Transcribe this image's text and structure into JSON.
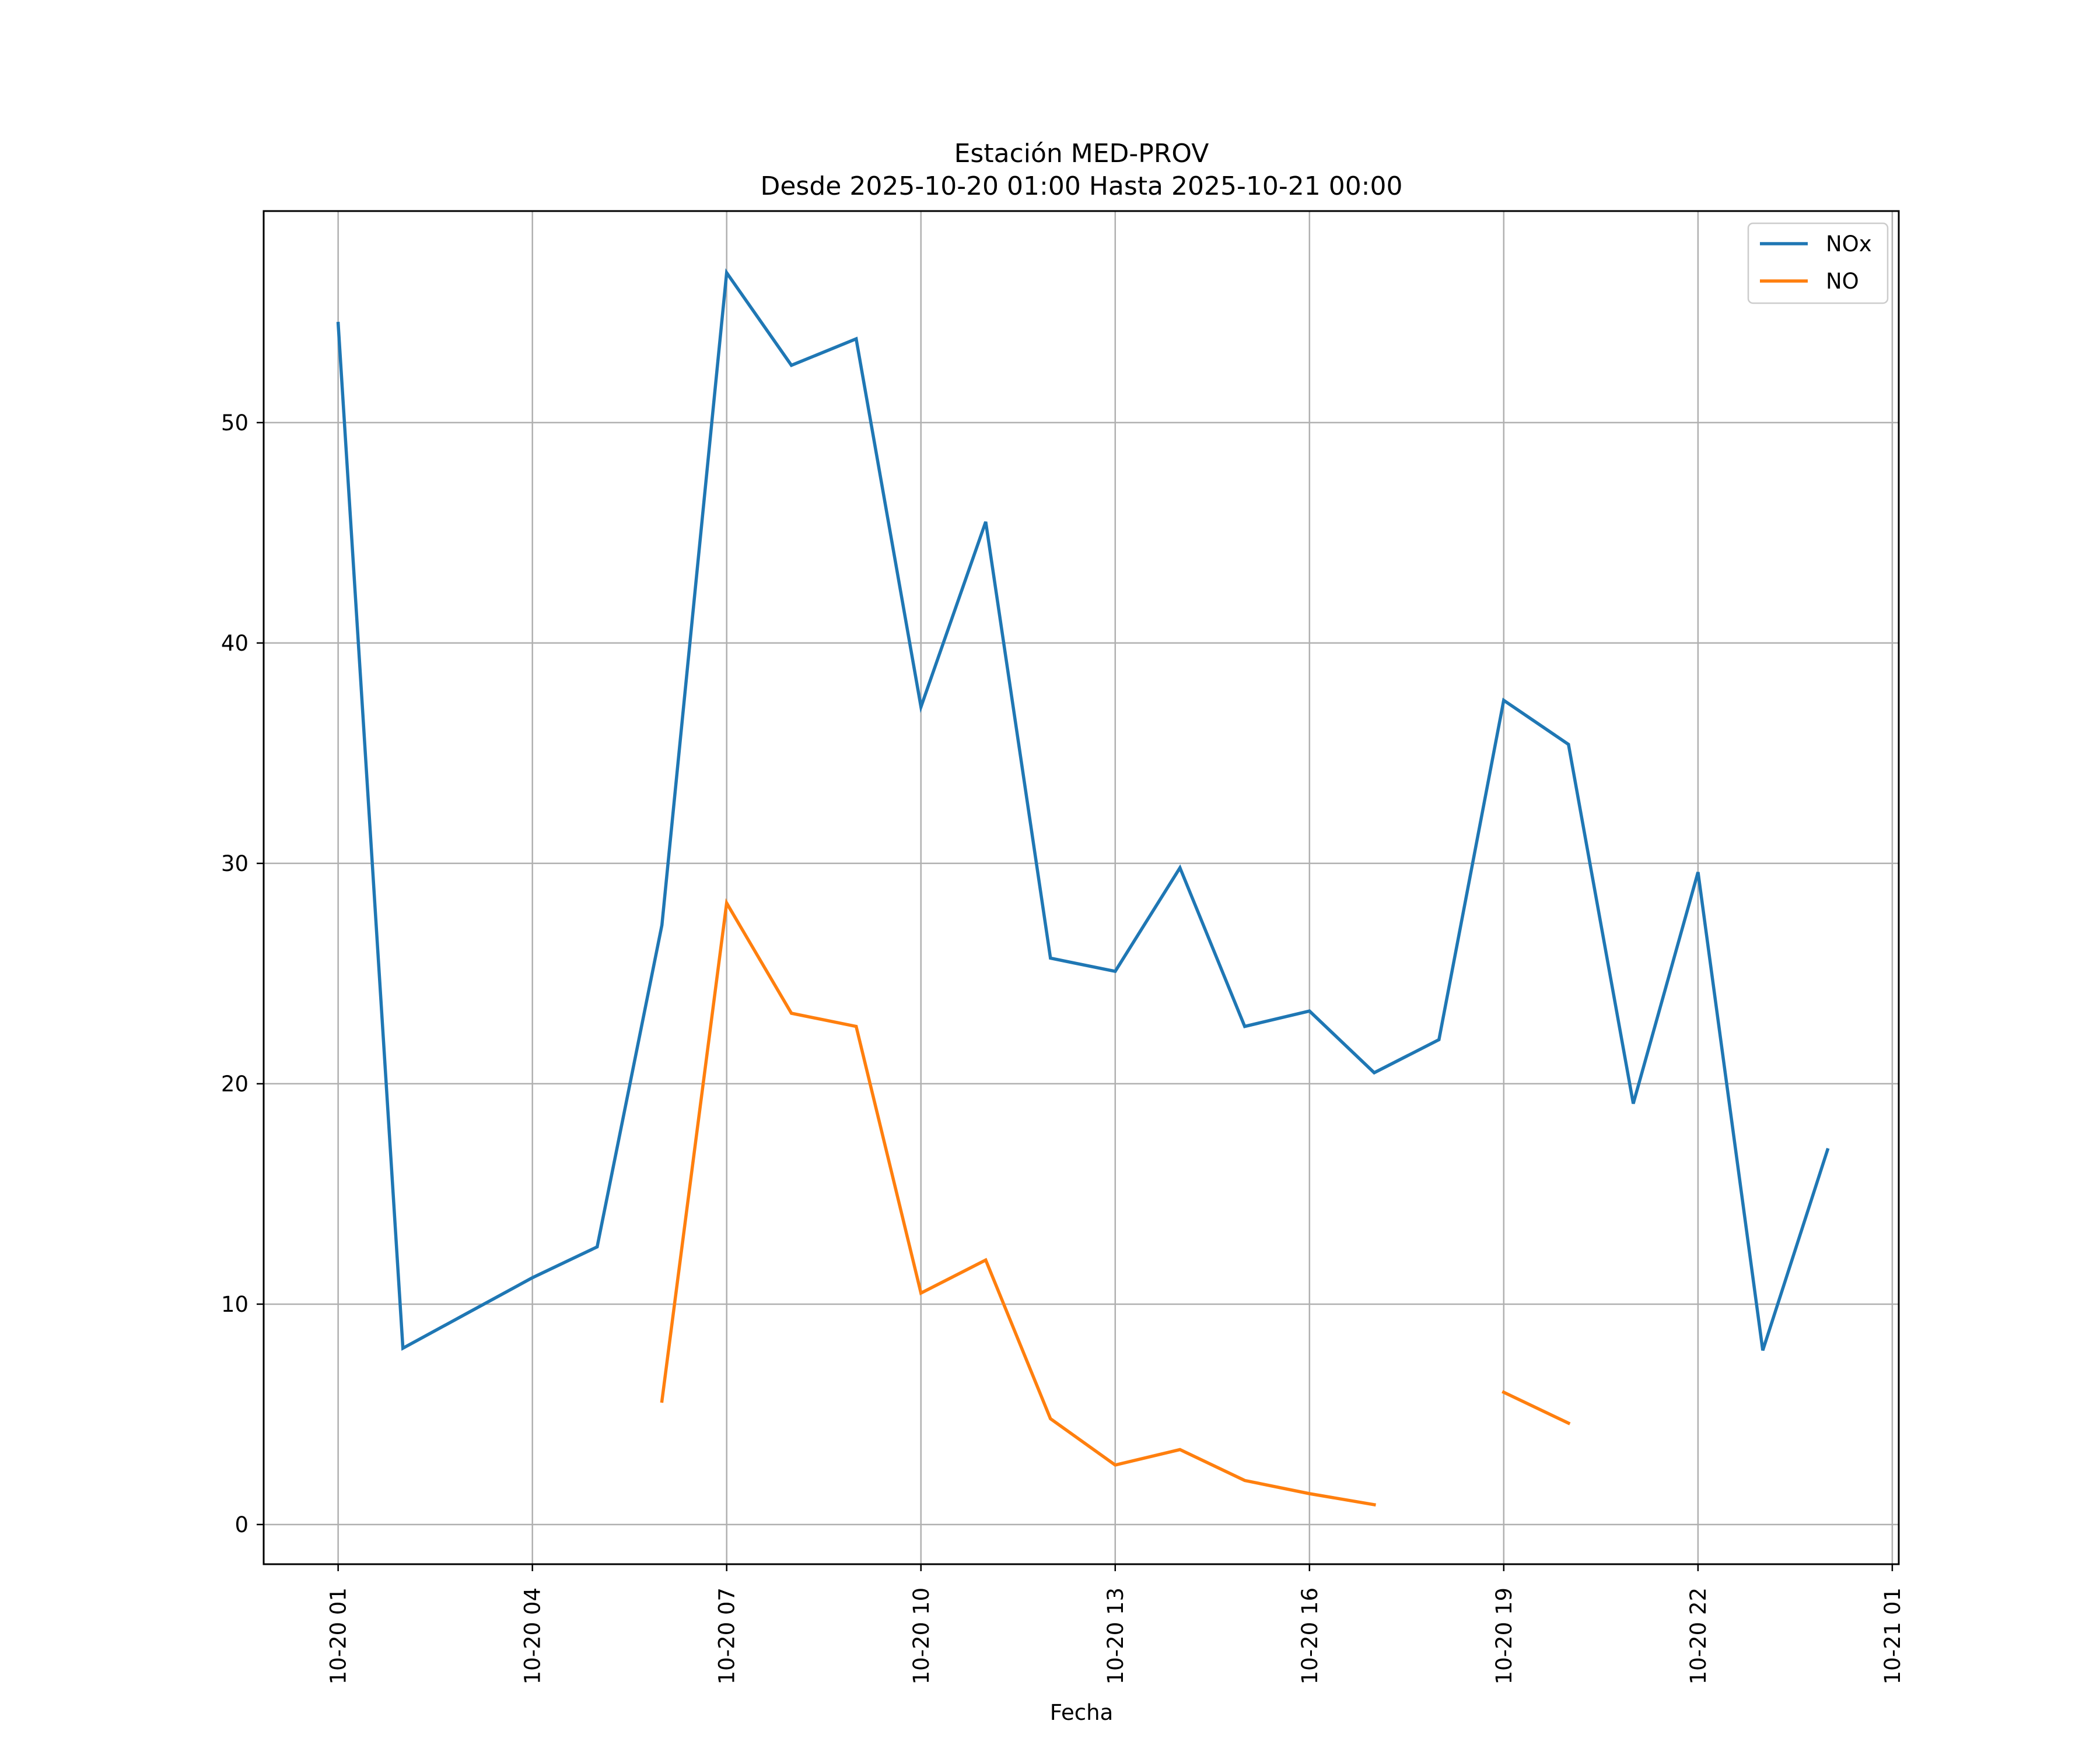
{
  "chart_data": {
    "type": "line",
    "title": "Estación MED-PROV",
    "subtitle": "Desde 2025-10-20 01:00 Hasta 2025-10-21 00:00",
    "xlabel": "Fecha",
    "ylabel": "",
    "grid": true,
    "legend_position": "top-right",
    "x": [
      "2025-10-20 01:00",
      "2025-10-20 02:00",
      "2025-10-20 03:00",
      "2025-10-20 04:00",
      "2025-10-20 05:00",
      "2025-10-20 06:00",
      "2025-10-20 07:00",
      "2025-10-20 08:00",
      "2025-10-20 09:00",
      "2025-10-20 10:00",
      "2025-10-20 11:00",
      "2025-10-20 12:00",
      "2025-10-20 13:00",
      "2025-10-20 14:00",
      "2025-10-20 15:00",
      "2025-10-20 16:00",
      "2025-10-20 17:00",
      "2025-10-20 18:00",
      "2025-10-20 19:00",
      "2025-10-20 20:00",
      "2025-10-20 21:00",
      "2025-10-20 22:00",
      "2025-10-20 23:00",
      "2025-10-21 00:00"
    ],
    "xlim": [
      "2025-10-19 23:51",
      "2025-10-21 01:06"
    ],
    "x_ticks": [
      "2025-10-20 01:00",
      "2025-10-20 04:00",
      "2025-10-20 07:00",
      "2025-10-20 10:00",
      "2025-10-20 13:00",
      "2025-10-20 16:00",
      "2025-10-20 19:00",
      "2025-10-20 22:00",
      "2025-10-21 01:00"
    ],
    "x_tick_labels": [
      "10-20 01",
      "10-20 04",
      "10-20 07",
      "10-20 10",
      "10-20 13",
      "10-20 16",
      "10-20 19",
      "10-20 22",
      "10-21 01"
    ],
    "ylim": [
      -1.8,
      59.6
    ],
    "y_ticks": [
      0,
      10,
      20,
      30,
      40,
      50
    ],
    "y_tick_labels": [
      "0",
      "10",
      "20",
      "30",
      "40",
      "50"
    ],
    "series": [
      {
        "name": "NOx",
        "color": "#1f77b4",
        "values": [
          54.5,
          8.0,
          9.6,
          11.2,
          12.6,
          27.2,
          56.8,
          52.6,
          53.8,
          37.1,
          45.5,
          25.7,
          25.1,
          29.8,
          22.6,
          23.3,
          20.5,
          22.0,
          37.4,
          35.4,
          19.1,
          29.6,
          7.9,
          17.0
        ]
      },
      {
        "name": "NO",
        "color": "#ff7f0e",
        "values": [
          null,
          null,
          null,
          null,
          null,
          5.6,
          28.2,
          23.2,
          22.6,
          10.5,
          12.0,
          4.8,
          2.7,
          3.4,
          2.0,
          1.4,
          0.9,
          null,
          6.0,
          4.6,
          null,
          null,
          null,
          null
        ]
      }
    ]
  }
}
